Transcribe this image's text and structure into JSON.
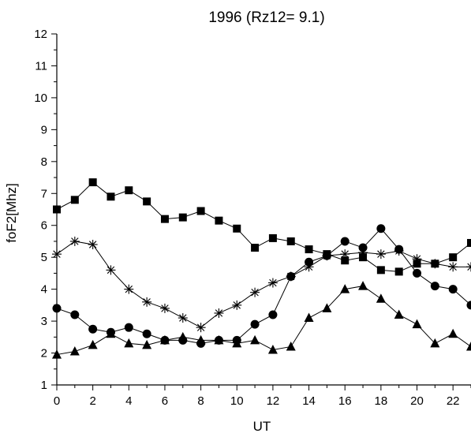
{
  "chart_data": {
    "type": "line",
    "title": "1996 (Rz12= 9.1)",
    "xlabel": "UT",
    "ylabel": "foF2[Mhz]",
    "xlim": [
      0,
      23
    ],
    "ylim": [
      1,
      12
    ],
    "x_ticks": [
      0,
      2,
      4,
      6,
      8,
      10,
      12,
      14,
      16,
      18,
      20,
      22
    ],
    "y_ticks": [
      1,
      2,
      3,
      4,
      5,
      6,
      7,
      8,
      9,
      10,
      11,
      12
    ],
    "grid": false,
    "x": [
      0,
      1,
      2,
      3,
      4,
      5,
      6,
      7,
      8,
      9,
      10,
      11,
      12,
      13,
      14,
      15,
      16,
      17,
      18,
      19,
      20,
      21,
      22,
      23
    ],
    "series": [
      {
        "marker": "square",
        "color": "#000000",
        "values": [
          6.5,
          6.8,
          7.35,
          6.9,
          7.1,
          6.75,
          6.2,
          6.25,
          6.45,
          6.15,
          5.9,
          5.3,
          5.6,
          5.5,
          5.25,
          5.1,
          4.9,
          5.0,
          4.6,
          4.55,
          4.8,
          4.8,
          5.0,
          5.45
        ]
      },
      {
        "marker": "asterisk",
        "color": "#000000",
        "values": [
          5.1,
          5.5,
          5.4,
          4.6,
          4.0,
          3.6,
          3.4,
          3.1,
          2.8,
          3.25,
          3.5,
          3.9,
          4.2,
          4.4,
          4.7,
          5.05,
          5.1,
          5.15,
          5.1,
          5.2,
          4.95,
          4.8,
          4.7,
          4.7
        ]
      },
      {
        "marker": "circle",
        "color": "#000000",
        "values": [
          3.4,
          3.2,
          2.75,
          2.65,
          2.8,
          2.6,
          2.4,
          2.4,
          2.3,
          2.4,
          2.4,
          2.9,
          3.2,
          4.4,
          4.85,
          5.05,
          5.5,
          5.3,
          5.9,
          5.25,
          4.5,
          4.1,
          4.0,
          3.5
        ]
      },
      {
        "marker": "triangle",
        "color": "#000000",
        "values": [
          1.95,
          2.05,
          2.25,
          2.6,
          2.3,
          2.25,
          2.4,
          2.5,
          2.4,
          2.4,
          2.3,
          2.4,
          2.1,
          2.2,
          3.1,
          3.4,
          4.0,
          4.1,
          3.7,
          3.2,
          2.9,
          2.3,
          2.6,
          2.2
        ]
      }
    ]
  }
}
